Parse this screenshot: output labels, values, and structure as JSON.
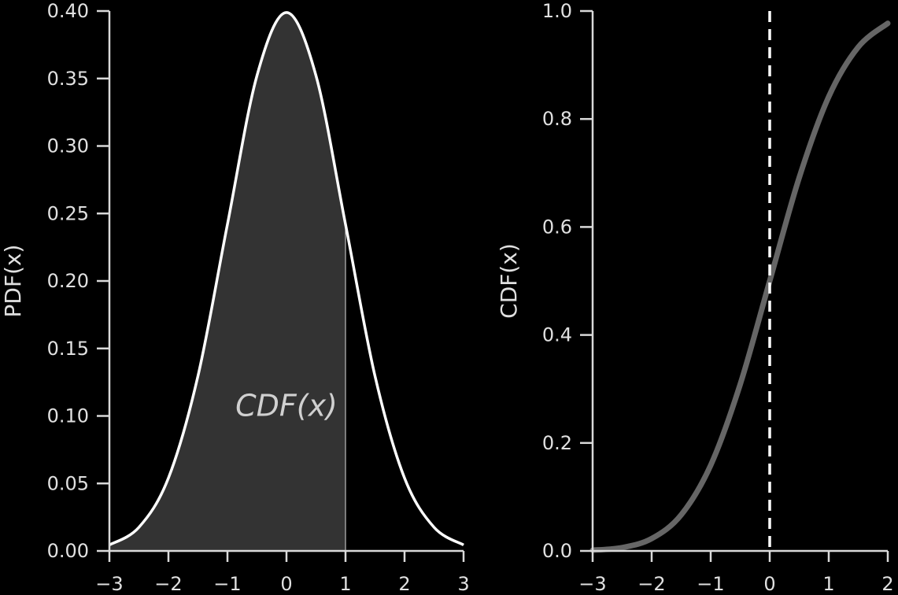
{
  "chart_data": [
    {
      "type": "area",
      "ylabel": "PDF(x)",
      "xlim": [
        -3,
        3
      ],
      "ylim": [
        0,
        0.4
      ],
      "xticks": [
        -3,
        -2,
        -1,
        0,
        1,
        2,
        3
      ],
      "xtick_labels": [
        "−3",
        "−2",
        "−1",
        "0",
        "1",
        "2",
        "3"
      ],
      "yticks": [
        0,
        0.05,
        0.1,
        0.15,
        0.2,
        0.25,
        0.3,
        0.35,
        0.4
      ],
      "ytick_labels": [
        "0.00",
        "0.05",
        "0.10",
        "0.15",
        "0.20",
        "0.25",
        "0.30",
        "0.35",
        "0.40"
      ],
      "series": [
        {
          "x": [
            -3,
            -2.5,
            -2,
            -1.5,
            -1,
            -0.5,
            0,
            0.5,
            1,
            1.5,
            2,
            2.5,
            3
          ],
          "values": [
            0.0044,
            0.0175,
            0.054,
            0.1295,
            0.242,
            0.3521,
            0.3989,
            0.3521,
            0.242,
            0.1295,
            0.054,
            0.0175,
            0.0044
          ]
        }
      ],
      "shaded_region": [
        -3,
        1
      ],
      "annotation": "CDF(x)",
      "curve_color": "#ffffff",
      "fill_color": "#333333"
    },
    {
      "type": "line",
      "ylabel": "CDF(x)",
      "xlim": [
        -3,
        2
      ],
      "ylim": [
        0,
        1.0
      ],
      "xticks": [
        -3,
        -2,
        -1,
        0,
        1,
        2
      ],
      "xtick_labels": [
        "−3",
        "−2",
        "−1",
        "0",
        "1",
        "2"
      ],
      "yticks": [
        0,
        0.2,
        0.4,
        0.6,
        0.8,
        1.0
      ],
      "ytick_labels": [
        "0.0",
        "0.2",
        "0.4",
        "0.6",
        "0.8",
        "1.0"
      ],
      "series": [
        {
          "x": [
            -3,
            -2.5,
            -2,
            -1.5,
            -1,
            -0.5,
            0,
            0.5,
            1,
            1.5,
            2
          ],
          "values": [
            0.0013,
            0.0062,
            0.0228,
            0.0668,
            0.1587,
            0.3085,
            0.5,
            0.6915,
            0.8413,
            0.9332,
            0.9772
          ]
        }
      ],
      "vline_x": 0,
      "curve_color": "#666666",
      "vline_color": "#ffffff"
    }
  ]
}
